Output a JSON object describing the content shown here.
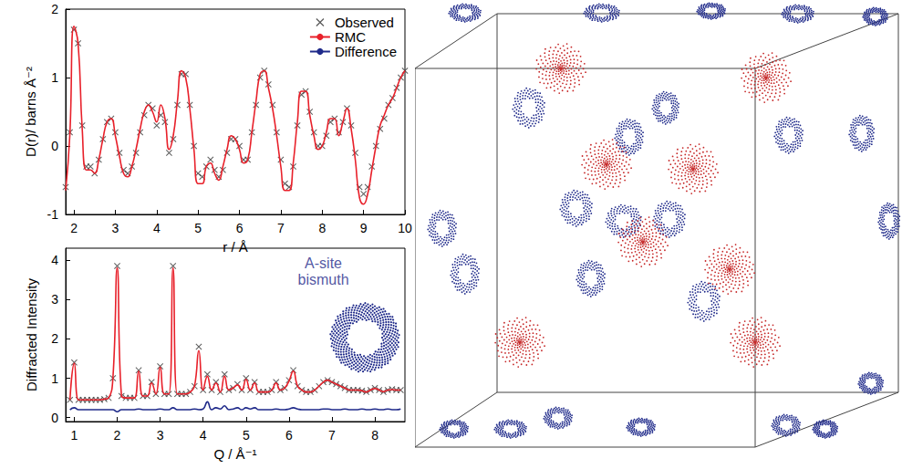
{
  "chart_data": [
    {
      "type": "line",
      "x_label": "r / Å",
      "y_label": "D(r)/ barns Å⁻²",
      "xlim": [
        1.8,
        10
      ],
      "xticks": [
        2,
        3,
        4,
        5,
        6,
        7,
        8,
        9,
        10
      ],
      "ylim": [
        -1,
        2
      ],
      "yticks": [
        -1,
        0,
        1,
        2
      ],
      "legend": "upper right",
      "x": [
        1.8,
        1.9,
        2.0,
        2.1,
        2.2,
        2.3,
        2.4,
        2.5,
        2.6,
        2.7,
        2.8,
        2.9,
        3.0,
        3.1,
        3.2,
        3.3,
        3.4,
        3.5,
        3.6,
        3.7,
        3.8,
        3.9,
        4.0,
        4.1,
        4.2,
        4.3,
        4.4,
        4.5,
        4.6,
        4.7,
        4.8,
        4.9,
        5.0,
        5.1,
        5.2,
        5.3,
        5.4,
        5.5,
        5.6,
        5.7,
        5.8,
        5.9,
        6.0,
        6.1,
        6.2,
        6.3,
        6.4,
        6.5,
        6.6,
        6.7,
        6.8,
        6.9,
        7.0,
        7.1,
        7.2,
        7.3,
        7.4,
        7.5,
        7.6,
        7.7,
        7.8,
        7.9,
        8.0,
        8.1,
        8.2,
        8.3,
        8.4,
        8.5,
        8.6,
        8.7,
        8.8,
        8.9,
        9.0,
        9.1,
        9.2,
        9.3,
        9.4,
        9.5,
        9.6,
        9.7,
        9.8,
        9.9,
        10.0
      ],
      "series": [
        {
          "name": "Observed",
          "type": "scatter",
          "marker": "x",
          "color": "#333333",
          "values": [
            -0.6,
            0.2,
            1.7,
            1.5,
            0.3,
            -0.3,
            -0.3,
            -0.4,
            -0.2,
            0.1,
            0.35,
            0.4,
            0.2,
            -0.1,
            -0.35,
            -0.4,
            -0.3,
            -0.1,
            0.2,
            0.45,
            0.6,
            0.55,
            0.3,
            0.45,
            0.35,
            -0.1,
            0.1,
            0.6,
            1.05,
            1.05,
            0.6,
            0.0,
            -0.4,
            -0.45,
            -0.3,
            -0.2,
            -0.35,
            -0.45,
            -0.35,
            -0.1,
            0.1,
            0.1,
            0.0,
            -0.2,
            -0.2,
            0.2,
            0.6,
            1.0,
            1.1,
            0.9,
            0.6,
            0.2,
            -0.2,
            -0.55,
            -0.6,
            -0.3,
            0.3,
            0.75,
            0.8,
            0.5,
            0.2,
            0.0,
            0.0,
            0.15,
            0.35,
            0.4,
            0.2,
            0.35,
            0.55,
            0.3,
            -0.1,
            -0.6,
            -0.7,
            -0.6,
            -0.3,
            0.0,
            0.25,
            0.4,
            0.6,
            0.7,
            0.85,
            1.0,
            1.1
          ]
        },
        {
          "name": "RMC",
          "type": "line",
          "line_style": "solid",
          "color": "#e8202a",
          "values": [
            -0.65,
            0.15,
            1.75,
            1.5,
            0.25,
            -0.35,
            -0.35,
            -0.4,
            -0.2,
            0.1,
            0.35,
            0.4,
            0.15,
            -0.15,
            -0.4,
            -0.45,
            -0.3,
            -0.05,
            0.25,
            0.5,
            0.6,
            0.5,
            0.35,
            0.6,
            0.4,
            -0.05,
            0.15,
            0.65,
            1.1,
            1.0,
            0.55,
            -0.05,
            -0.55,
            -0.55,
            -0.3,
            -0.25,
            -0.4,
            -0.5,
            -0.3,
            -0.05,
            0.15,
            0.1,
            -0.05,
            -0.25,
            -0.2,
            0.2,
            0.65,
            1.05,
            1.1,
            0.85,
            0.55,
            0.15,
            -0.3,
            -0.65,
            -0.65,
            -0.25,
            0.35,
            0.8,
            0.8,
            0.45,
            0.15,
            -0.05,
            0.0,
            0.2,
            0.4,
            0.4,
            0.15,
            0.35,
            0.55,
            0.25,
            -0.2,
            -0.75,
            -0.85,
            -0.7,
            -0.35,
            0.0,
            0.3,
            0.45,
            0.6,
            0.7,
            0.85,
            1.0,
            1.1
          ]
        },
        {
          "name": "Difference",
          "type": "line",
          "line_style": "solid",
          "color": "#1f2a8a",
          "values": [
            null,
            null,
            null,
            null,
            null,
            null,
            null,
            null,
            null,
            null,
            null,
            null,
            null,
            null,
            null,
            null,
            null,
            null,
            null,
            null,
            null,
            null,
            null,
            null,
            null,
            null,
            null,
            null,
            null,
            null,
            null,
            null,
            null,
            null,
            null,
            null,
            null,
            null,
            null,
            null,
            null,
            null,
            null,
            null,
            null,
            null,
            null,
            null,
            null,
            null,
            null,
            null,
            null,
            null,
            null,
            null,
            null,
            null,
            null,
            null,
            null,
            null,
            null,
            null,
            null,
            null,
            null,
            null,
            null,
            null,
            null,
            null,
            null,
            null,
            null,
            null,
            null,
            null,
            null,
            null,
            null,
            null,
            null
          ]
        }
      ]
    },
    {
      "type": "line",
      "x_label": "Q / Å⁻¹",
      "y_label": "Diffracted Intensity",
      "xlim": [
        0.8,
        8.7
      ],
      "xticks": [
        1,
        2,
        3,
        4,
        5,
        6,
        7,
        8
      ],
      "ylim": [
        -0.1,
        4.3
      ],
      "yticks": [
        0,
        1,
        2,
        3,
        4
      ],
      "annotations": [
        {
          "text": "A-site bismuth",
          "x": 6.8,
          "y": 3.7
        }
      ],
      "x": [
        0.9,
        1.0,
        1.1,
        1.2,
        1.3,
        1.4,
        1.5,
        1.6,
        1.7,
        1.8,
        1.9,
        2.0,
        2.1,
        2.2,
        2.3,
        2.4,
        2.5,
        2.6,
        2.7,
        2.8,
        2.9,
        3.0,
        3.1,
        3.2,
        3.3,
        3.4,
        3.5,
        3.6,
        3.7,
        3.8,
        3.9,
        4.0,
        4.1,
        4.2,
        4.3,
        4.4,
        4.5,
        4.6,
        4.7,
        4.8,
        4.9,
        5.0,
        5.1,
        5.2,
        5.3,
        5.4,
        5.5,
        5.6,
        5.7,
        5.8,
        5.9,
        6.0,
        6.1,
        6.2,
        6.3,
        6.4,
        6.5,
        6.6,
        6.7,
        6.8,
        6.9,
        7.0,
        7.1,
        7.2,
        7.3,
        7.4,
        7.5,
        7.6,
        7.7,
        7.8,
        7.9,
        8.0,
        8.1,
        8.2,
        8.3,
        8.4,
        8.5,
        8.6
      ],
      "series": [
        {
          "type": "scatter",
          "marker": "x",
          "color": "#333333",
          "values": [
            0.45,
            1.4,
            0.45,
            0.45,
            0.45,
            0.45,
            0.45,
            0.45,
            0.47,
            0.5,
            1.0,
            3.85,
            0.55,
            0.5,
            0.5,
            0.5,
            1.2,
            0.55,
            0.55,
            0.9,
            0.6,
            1.3,
            0.6,
            0.6,
            3.85,
            0.6,
            0.6,
            0.6,
            0.65,
            0.8,
            1.8,
            0.7,
            1.1,
            0.7,
            0.9,
            0.65,
            1.1,
            0.7,
            0.75,
            0.85,
            0.7,
            1.0,
            0.7,
            0.9,
            0.65,
            0.65,
            0.65,
            0.7,
            0.9,
            0.7,
            0.75,
            0.95,
            1.2,
            0.8,
            0.7,
            0.65,
            0.65,
            0.7,
            0.8,
            0.9,
            0.95,
            0.9,
            0.85,
            0.8,
            0.75,
            0.7,
            0.7,
            0.7,
            0.68,
            0.65,
            0.7,
            0.75,
            0.7,
            0.65,
            0.7,
            0.72,
            0.7,
            0.7
          ]
        },
        {
          "type": "line",
          "line_style": "solid",
          "color": "#e8202a",
          "values": [
            0.45,
            1.38,
            0.45,
            0.45,
            0.45,
            0.45,
            0.45,
            0.45,
            0.47,
            0.5,
            1.0,
            3.8,
            0.55,
            0.5,
            0.5,
            0.5,
            1.18,
            0.55,
            0.55,
            0.88,
            0.6,
            1.28,
            0.6,
            0.6,
            3.8,
            0.6,
            0.6,
            0.6,
            0.65,
            0.8,
            1.7,
            0.7,
            1.05,
            0.7,
            0.88,
            0.65,
            1.05,
            0.7,
            0.75,
            0.83,
            0.7,
            0.97,
            0.7,
            0.88,
            0.65,
            0.65,
            0.65,
            0.7,
            0.88,
            0.7,
            0.75,
            0.93,
            1.18,
            0.8,
            0.7,
            0.65,
            0.65,
            0.7,
            0.8,
            0.9,
            0.95,
            0.9,
            0.85,
            0.8,
            0.75,
            0.7,
            0.7,
            0.7,
            0.68,
            0.65,
            0.7,
            0.74,
            0.7,
            0.66,
            0.7,
            0.71,
            0.7,
            0.7
          ]
        },
        {
          "type": "line",
          "line_style": "solid",
          "color": "#1f2a8a",
          "values": [
            0.2,
            0.25,
            0.2,
            0.2,
            0.2,
            0.2,
            0.2,
            0.2,
            0.2,
            0.2,
            0.2,
            0.15,
            0.2,
            0.2,
            0.2,
            0.2,
            0.22,
            0.2,
            0.2,
            0.2,
            0.2,
            0.22,
            0.2,
            0.2,
            0.25,
            0.2,
            0.2,
            0.2,
            0.2,
            0.22,
            0.2,
            0.22,
            0.4,
            0.2,
            0.25,
            0.22,
            0.3,
            0.2,
            0.22,
            0.25,
            0.2,
            0.25,
            0.22,
            0.25,
            0.2,
            0.2,
            0.2,
            0.2,
            0.22,
            0.2,
            0.2,
            0.22,
            0.25,
            0.22,
            0.2,
            0.2,
            0.2,
            0.2,
            0.2,
            0.22,
            0.22,
            0.2,
            0.2,
            0.2,
            0.22,
            0.2,
            0.2,
            0.2,
            0.22,
            0.2,
            0.2,
            0.22,
            0.2,
            0.2,
            0.22,
            0.2,
            0.2,
            0.22
          ]
        }
      ]
    }
  ]
}
